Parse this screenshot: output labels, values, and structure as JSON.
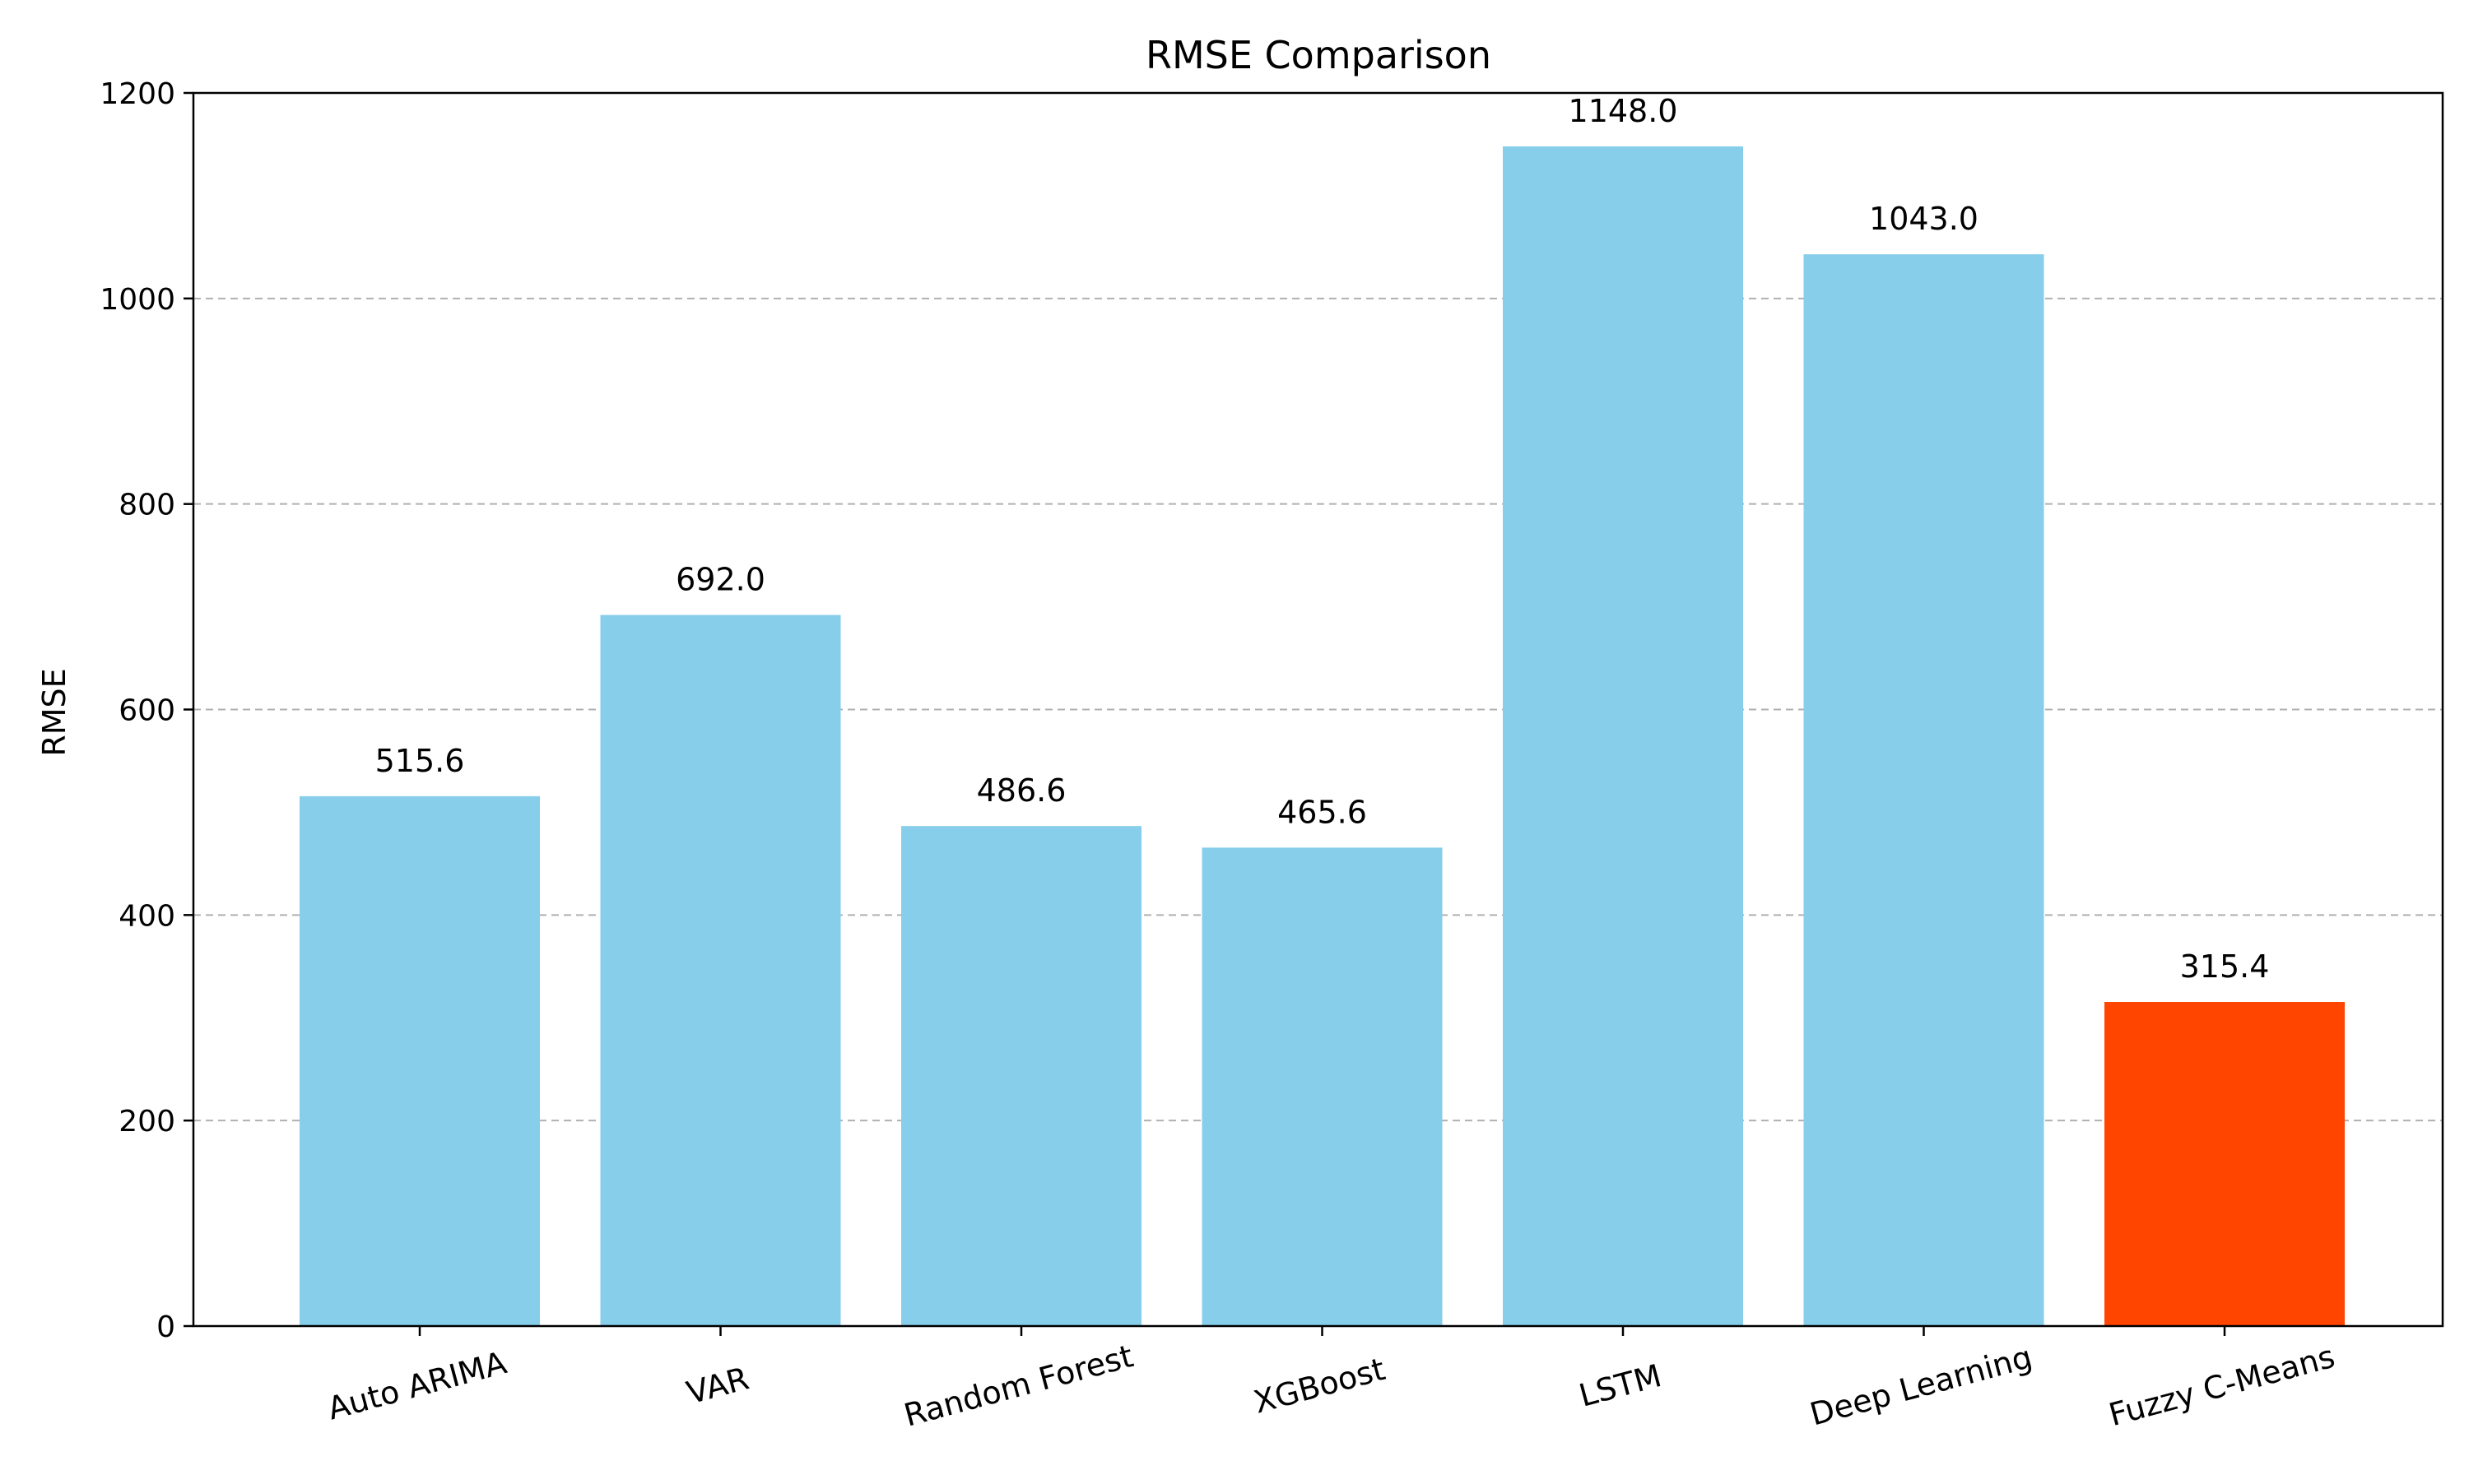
{
  "chart_data": {
    "type": "bar",
    "title": "RMSE Comparison",
    "xlabel": "",
    "ylabel": "RMSE",
    "categories": [
      "Auto ARIMA",
      "VAR",
      "Random Forest",
      "XGBoost",
      "LSTM",
      "Deep Learning",
      "Fuzzy C-Means"
    ],
    "values": [
      515.6,
      692.0,
      486.6,
      465.6,
      1148.0,
      1043.0,
      315.4
    ],
    "data_labels": [
      "515.6",
      "692.0",
      "486.6",
      "465.6",
      "1148.0",
      "1043.0",
      "315.4"
    ],
    "bar_colors": [
      "#87CEEB",
      "#87CEEB",
      "#87CEEB",
      "#87CEEB",
      "#87CEEB",
      "#87CEEB",
      "#FF4500"
    ],
    "ylim": [
      0,
      1200
    ],
    "yticks": [
      0,
      200,
      400,
      600,
      800,
      1000,
      1200
    ],
    "ytick_labels": [
      "0",
      "200",
      "400",
      "600",
      "800",
      "1000",
      "1200"
    ],
    "grid": "y-dashed",
    "legend": "none",
    "xtick_rotation_deg": 15
  }
}
